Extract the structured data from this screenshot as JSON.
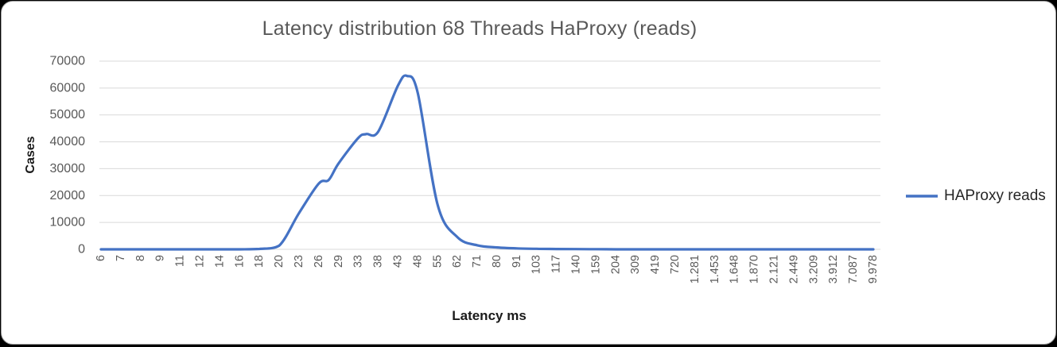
{
  "chart": {
    "title": "Latency distribution 68 Threads HaProxy (reads)",
    "y_axis_title": "Cases",
    "x_axis_title": "Latency ms",
    "legend_label": "HAProxy reads"
  },
  "style": {
    "line_color": "#4472C4",
    "grid_color": "#D9D9D9",
    "tick_text_color": "#595959",
    "axis_title_color": "#1a1a1a",
    "background": "#ffffff"
  },
  "chart_data": {
    "type": "line",
    "title": "Latency distribution 68 Threads HaProxy (reads)",
    "xlabel": "Latency ms",
    "ylabel": "Cases",
    "legend_entries": [
      "HAProxy reads"
    ],
    "legend_position": "right",
    "grid": true,
    "smooth_line": true,
    "x_tick_rotation": -90,
    "ylim": [
      0,
      70000
    ],
    "yticks": [
      0,
      10000,
      20000,
      30000,
      40000,
      50000,
      60000,
      70000
    ],
    "categories": [
      "6",
      "7",
      "8",
      "9",
      "11",
      "12",
      "14",
      "16",
      "18",
      "20",
      "23",
      "26",
      "29",
      "33",
      "38",
      "43",
      "48",
      "55",
      "62",
      "71",
      "80",
      "91",
      "103",
      "117",
      "140",
      "159",
      "204",
      "309",
      "419",
      "720",
      "1.281",
      "1.453",
      "1.648",
      "1.870",
      "2.121",
      "2.449",
      "3.209",
      "3.912",
      "7.087",
      "9.978"
    ],
    "series": [
      {
        "name": "HAProxy reads",
        "color": "#4472C4",
        "values": [
          0,
          0,
          0,
          0,
          0,
          0,
          0,
          0,
          150,
          1400,
          13500,
          24500,
          32000,
          41500,
          43800,
          61000,
          58000,
          16500,
          4500,
          1500,
          700,
          350,
          200,
          120,
          80,
          50,
          0,
          0,
          0,
          0,
          0,
          0,
          0,
          0,
          0,
          0,
          0,
          0,
          0,
          0
        ],
        "peak": {
          "value": 64500,
          "between": [
            "43",
            "48"
          ]
        }
      }
    ],
    "draw_points": [
      [
        0,
        0
      ],
      [
        1,
        0
      ],
      [
        2,
        0
      ],
      [
        3,
        0
      ],
      [
        4,
        0
      ],
      [
        5,
        0
      ],
      [
        6,
        0
      ],
      [
        7,
        0
      ],
      [
        8,
        150
      ],
      [
        9,
        1400
      ],
      [
        10,
        13500
      ],
      [
        11,
        24500
      ],
      [
        11.5,
        25800
      ],
      [
        12,
        32000
      ],
      [
        13,
        41500
      ],
      [
        13.4,
        42900
      ],
      [
        14,
        43800
      ],
      [
        15,
        61000
      ],
      [
        15.45,
        64500
      ],
      [
        16,
        58000
      ],
      [
        17,
        16500
      ],
      [
        18,
        4500
      ],
      [
        19,
        1500
      ],
      [
        20,
        700
      ],
      [
        21,
        350
      ],
      [
        22,
        200
      ],
      [
        23,
        120
      ],
      [
        24,
        80
      ],
      [
        25,
        50
      ],
      [
        26,
        0
      ],
      [
        27,
        0
      ],
      [
        28,
        0
      ],
      [
        29,
        0
      ],
      [
        30,
        0
      ],
      [
        31,
        0
      ],
      [
        32,
        0
      ],
      [
        33,
        0
      ],
      [
        34,
        0
      ],
      [
        35,
        0
      ],
      [
        36,
        0
      ],
      [
        37,
        0
      ],
      [
        38,
        0
      ],
      [
        39,
        0
      ]
    ]
  }
}
